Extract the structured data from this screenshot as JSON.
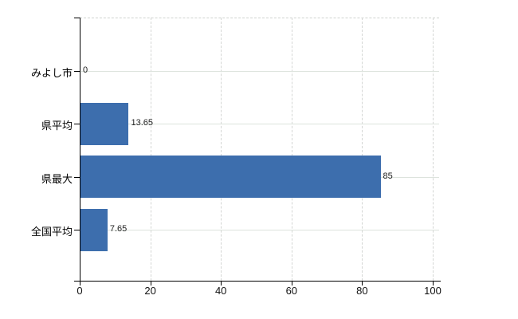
{
  "chart_data": {
    "type": "bar",
    "orientation": "horizontal",
    "title": "",
    "categories": [
      "みよし市",
      "県平均",
      "県最大",
      "全国平均"
    ],
    "values": [
      0,
      13.65,
      85,
      7.65
    ],
    "value_labels": [
      "0",
      "13.65",
      "85",
      "7.65"
    ],
    "series": [
      {
        "name": "",
        "values": [
          0,
          13.65,
          85,
          7.65
        ]
      }
    ],
    "xlim": [
      0,
      100
    ],
    "x_ticks": [
      0,
      20,
      40,
      60,
      80,
      100
    ],
    "x_tick_labels": [
      "0",
      "20",
      "40",
      "60",
      "80",
      "100"
    ],
    "xlabel": "",
    "ylabel": "",
    "legend_position": "none",
    "grid": "on",
    "colors": {
      "bar": "#3d6ead",
      "axis": "#000000",
      "grid_horizontal": "#dde3dd",
      "grid_vertical": "#d4d6d4",
      "text": "#000000",
      "value_text": "#222222",
      "background": "#ffffff"
    }
  }
}
